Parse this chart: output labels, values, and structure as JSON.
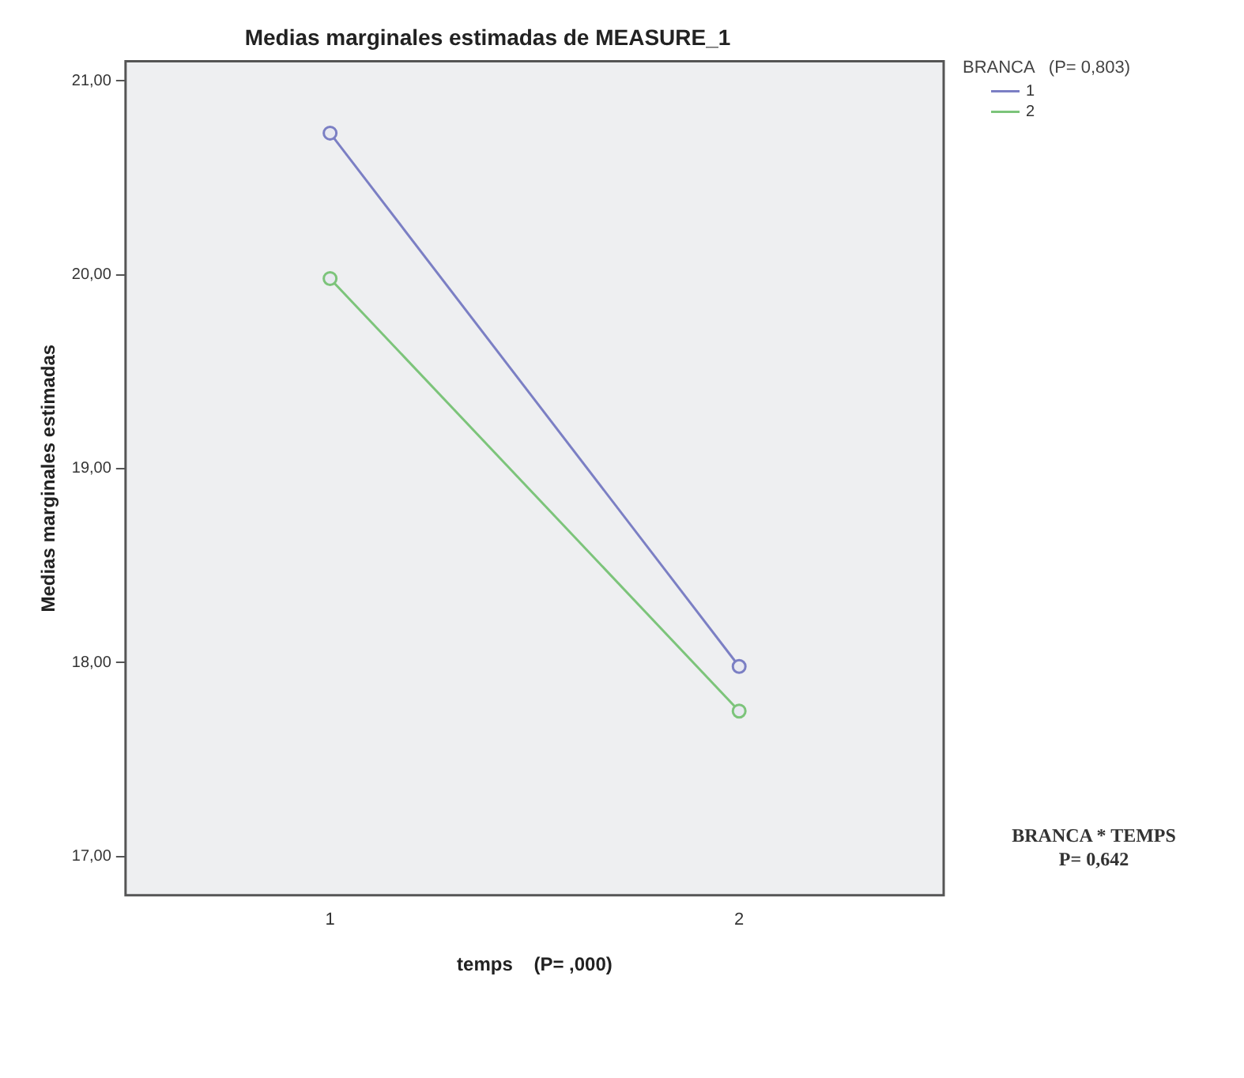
{
  "chart_data": {
    "type": "line",
    "title": "Medias marginales estimadas de MEASURE_1",
    "xlabel": "temps    (P= ,000)",
    "ylabel": "Medias marginales estimadas",
    "legend_title": "BRANCA   (P= 0,803)",
    "annotations": [
      "BRANCA * TEMPS\nP= 0,642"
    ],
    "categories": [
      "1",
      "2"
    ],
    "series": [
      {
        "name": "1",
        "color": "#7b7fc4",
        "values": [
          20.73,
          17.98
        ]
      },
      {
        "name": "2",
        "color": "#7cc47a",
        "values": [
          19.98,
          17.75
        ]
      }
    ],
    "ylim": [
      16.8,
      21.1
    ],
    "yticks": [
      {
        "value": 17,
        "label": "17,00"
      },
      {
        "value": 18,
        "label": "18,00"
      },
      {
        "value": 19,
        "label": "19,00"
      },
      {
        "value": 20,
        "label": "20,00"
      },
      {
        "value": 21,
        "label": "21,00"
      }
    ],
    "grid": false,
    "legend": "top right",
    "marker": "circle",
    "line_style": "solid"
  }
}
